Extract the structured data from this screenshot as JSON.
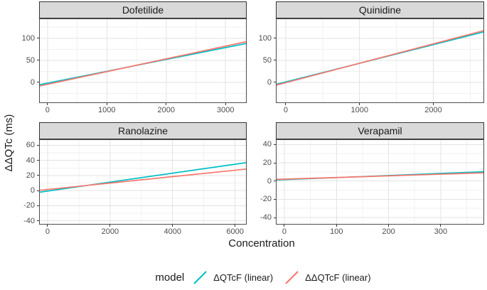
{
  "axes": {
    "x_title": "Concentration",
    "y_title": "ΔΔQTc (ms)"
  },
  "legend": {
    "title": "model",
    "items": [
      {
        "label": "ΔQTcF (linear)",
        "color": "#00BFC4"
      },
      {
        "label": "ΔΔQTcF (linear)",
        "color": "#F8766D"
      }
    ]
  },
  "theme": {
    "strip_bg": "#D9D9D9",
    "strip_border": "#333333",
    "panel_border": "#4d4d4d",
    "grid_major": "#E3E3E3",
    "grid_minor": "#F1F1F1",
    "tick_color": "#333333",
    "tick_label_color": "#4d4d4d"
  },
  "chart_data": {
    "type": "line",
    "layout": "facet-grid-2x2",
    "grid": "major+minor",
    "legend_position": "bottom",
    "x_title": "Concentration",
    "y_title": "ΔΔQTc (ms)",
    "facets": [
      {
        "title": "Dofetilide",
        "xlim": [
          -130,
          3345
        ],
        "ylim": [
          -45,
          143
        ],
        "xticks": [
          0,
          1000,
          2000,
          3000
        ],
        "yticks": [
          0,
          50,
          100
        ],
        "series": [
          {
            "name": "ΔQTcF (linear)",
            "color": "#00BFC4",
            "x": [
              -130,
              3345
            ],
            "y": [
              -5,
              88
            ]
          },
          {
            "name": "ΔΔQTcF (linear)",
            "color": "#F8766D",
            "x": [
              -130,
              3345
            ],
            "y": [
              -8,
              92
            ]
          }
        ]
      },
      {
        "title": "Quinidine",
        "xlim": [
          -125,
          2680
        ],
        "ylim": [
          -45,
          143
        ],
        "xticks": [
          0,
          1000,
          2000
        ],
        "yticks": [
          0,
          50,
          100
        ],
        "series": [
          {
            "name": "ΔQTcF (linear)",
            "color": "#00BFC4",
            "x": [
              -125,
              2680
            ],
            "y": [
              -4,
              114
            ]
          },
          {
            "name": "ΔΔQTcF (linear)",
            "color": "#F8766D",
            "x": [
              -125,
              2680
            ],
            "y": [
              -6,
              117
            ]
          }
        ]
      },
      {
        "title": "Ranolazine",
        "xlim": [
          -250,
          6350
        ],
        "ylim": [
          -44,
          67
        ],
        "xticks": [
          0,
          2000,
          4000,
          6000
        ],
        "yticks": [
          -40,
          -20,
          0,
          20,
          40,
          60
        ],
        "series": [
          {
            "name": "ΔQTcF (linear)",
            "color": "#00BFC4",
            "x": [
              -250,
              6350
            ],
            "y": [
              -2,
              37
            ]
          },
          {
            "name": "ΔΔQTcF (linear)",
            "color": "#F8766D",
            "x": [
              -250,
              6350
            ],
            "y": [
              0.5,
              28.5
            ]
          }
        ]
      },
      {
        "title": "Verapamil",
        "xlim": [
          -15,
          382
        ],
        "ylim": [
          -47,
          45
        ],
        "xticks": [
          0,
          100,
          200,
          300
        ],
        "yticks": [
          -40,
          -20,
          0,
          20,
          40
        ],
        "series": [
          {
            "name": "ΔQTcF (linear)",
            "color": "#00BFC4",
            "x": [
              -15,
              382
            ],
            "y": [
              1.2,
              10.2
            ]
          },
          {
            "name": "ΔΔQTcF (linear)",
            "color": "#F8766D",
            "x": [
              -15,
              382
            ],
            "y": [
              1.8,
              9.0
            ]
          }
        ]
      }
    ]
  }
}
